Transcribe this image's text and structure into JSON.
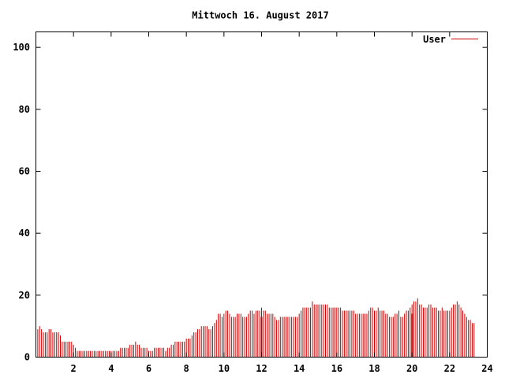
{
  "chart_data": {
    "type": "bar",
    "title": "Mittwoch 16. August 2017",
    "xlabel": "",
    "ylabel": "",
    "xlim": [
      0,
      24
    ],
    "ylim": [
      0,
      105
    ],
    "xticks": [
      2,
      4,
      6,
      8,
      10,
      12,
      14,
      16,
      18,
      20,
      22,
      24
    ],
    "yticks": [
      0,
      20,
      40,
      60,
      80,
      100
    ],
    "grid": false,
    "legend_position": "top-right",
    "series": [
      {
        "name": "User",
        "color": "#cc0000",
        "interval_hours": 0.1,
        "x_start": 0,
        "values": [
          9,
          9,
          10,
          9,
          8,
          8,
          8,
          9,
          9,
          8,
          8,
          8,
          8,
          7,
          5,
          5,
          5,
          5,
          5,
          5,
          4,
          3,
          2,
          2,
          2,
          2,
          2,
          2,
          2,
          2,
          2,
          2,
          2,
          2,
          2,
          2,
          2,
          2,
          2,
          2,
          2,
          2,
          2,
          2,
          2,
          3,
          3,
          3,
          3,
          3,
          4,
          4,
          4,
          5,
          4,
          4,
          3,
          3,
          3,
          3,
          2,
          2,
          2,
          3,
          3,
          3,
          3,
          3,
          3,
          2,
          3,
          3,
          4,
          4,
          5,
          5,
          5,
          5,
          5,
          5,
          6,
          6,
          6,
          7,
          8,
          8,
          9,
          9,
          10,
          10,
          10,
          10,
          9,
          9,
          10,
          11,
          12,
          14,
          14,
          13,
          14,
          15,
          15,
          14,
          13,
          13,
          13,
          14,
          14,
          14,
          13,
          13,
          13,
          14,
          15,
          15,
          14,
          15,
          15,
          15,
          16,
          15,
          15,
          14,
          14,
          14,
          14,
          13,
          12,
          12,
          13,
          13,
          13,
          13,
          13,
          13,
          13,
          13,
          13,
          13,
          14,
          15,
          16,
          16,
          16,
          16,
          16,
          18,
          17,
          17,
          17,
          17,
          17,
          17,
          17,
          17,
          16,
          16,
          16,
          16,
          16,
          16,
          16,
          15,
          15,
          15,
          15,
          15,
          15,
          15,
          14,
          14,
          14,
          14,
          14,
          14,
          14,
          15,
          16,
          16,
          15,
          15,
          16,
          15,
          15,
          15,
          14,
          14,
          13,
          13,
          13,
          14,
          14,
          15,
          13,
          13,
          14,
          15,
          15,
          16,
          17,
          18,
          18,
          19,
          17,
          17,
          16,
          16,
          16,
          17,
          17,
          16,
          16,
          16,
          15,
          15,
          16,
          15,
          15,
          15,
          15,
          16,
          17,
          17,
          18,
          17,
          16,
          15,
          14,
          13,
          12,
          12,
          11,
          11
        ]
      }
    ],
    "accent_lines": [
      {
        "x": 12,
        "value": 13
      },
      {
        "x": 20,
        "value": 14
      }
    ]
  }
}
